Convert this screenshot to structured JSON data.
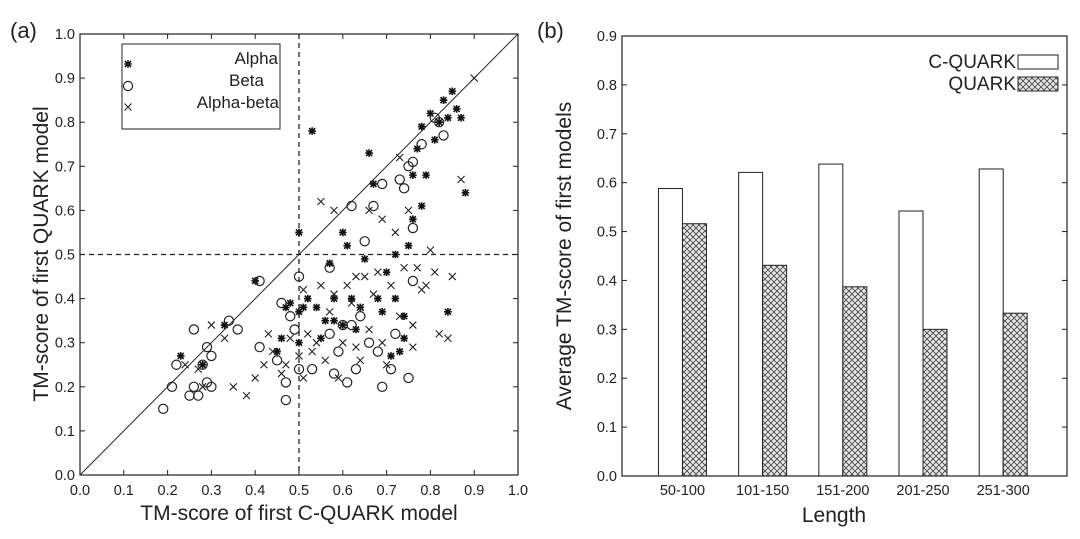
{
  "chart_data": [
    {
      "panel": "(a)",
      "type": "scatter",
      "xlabel": "TM-score of first C-QUARK model",
      "ylabel": "TM-score of first QUARK model",
      "xlim": [
        0.0,
        1.0
      ],
      "ylim": [
        0.0,
        1.0
      ],
      "xticks": [
        "0.0",
        "0.1",
        "0.2",
        "0.3",
        "0.4",
        "0.5",
        "0.6",
        "0.7",
        "0.8",
        "0.9",
        "1.0"
      ],
      "yticks": [
        "0.0",
        "0.1",
        "0.2",
        "0.3",
        "0.4",
        "0.5",
        "0.6",
        "0.7",
        "0.8",
        "0.9",
        "1.0"
      ],
      "reference_lines": {
        "diagonal": "y = x",
        "vertical_dashed_x": 0.5,
        "horizontal_dashed_y": 0.5
      },
      "legend": [
        "Alpha",
        "Beta",
        "Alpha-beta"
      ],
      "series": [
        {
          "name": "Alpha",
          "marker": "asterisk",
          "points": [
            [
              0.23,
              0.27
            ],
            [
              0.28,
              0.25
            ],
            [
              0.33,
              0.34
            ],
            [
              0.4,
              0.44
            ],
            [
              0.45,
              0.28
            ],
            [
              0.46,
              0.31
            ],
            [
              0.47,
              0.38
            ],
            [
              0.48,
              0.39
            ],
            [
              0.5,
              0.37
            ],
            [
              0.5,
              0.3
            ],
            [
              0.51,
              0.38
            ],
            [
              0.52,
              0.4
            ],
            [
              0.53,
              0.78
            ],
            [
              0.54,
              0.38
            ],
            [
              0.56,
              0.35
            ],
            [
              0.58,
              0.4
            ],
            [
              0.58,
              0.35
            ],
            [
              0.6,
              0.34
            ],
            [
              0.61,
              0.52
            ],
            [
              0.62,
              0.4
            ],
            [
              0.63,
              0.33
            ],
            [
              0.64,
              0.38
            ],
            [
              0.65,
              0.49
            ],
            [
              0.66,
              0.73
            ],
            [
              0.67,
              0.66
            ],
            [
              0.68,
              0.4
            ],
            [
              0.69,
              0.37
            ],
            [
              0.7,
              0.46
            ],
            [
              0.72,
              0.5
            ],
            [
              0.72,
              0.4
            ],
            [
              0.73,
              0.28
            ],
            [
              0.74,
              0.31
            ],
            [
              0.74,
              0.36
            ],
            [
              0.75,
              0.52
            ],
            [
              0.76,
              0.58
            ],
            [
              0.76,
              0.68
            ],
            [
              0.77,
              0.74
            ],
            [
              0.78,
              0.79
            ],
            [
              0.79,
              0.68
            ],
            [
              0.8,
              0.82
            ],
            [
              0.81,
              0.76
            ],
            [
              0.82,
              0.8
            ],
            [
              0.83,
              0.85
            ],
            [
              0.84,
              0.81
            ],
            [
              0.85,
              0.87
            ],
            [
              0.86,
              0.83
            ],
            [
              0.87,
              0.81
            ],
            [
              0.88,
              0.64
            ],
            [
              0.84,
              0.37
            ],
            [
              0.6,
              0.55
            ],
            [
              0.55,
              0.31
            ],
            [
              0.5,
              0.55
            ],
            [
              0.57,
              0.48
            ],
            [
              0.71,
              0.27
            ],
            [
              0.78,
              0.61
            ]
          ]
        },
        {
          "name": "Beta",
          "marker": "circle",
          "points": [
            [
              0.19,
              0.15
            ],
            [
              0.21,
              0.2
            ],
            [
              0.22,
              0.25
            ],
            [
              0.25,
              0.18
            ],
            [
              0.26,
              0.2
            ],
            [
              0.26,
              0.33
            ],
            [
              0.27,
              0.18
            ],
            [
              0.28,
              0.25
            ],
            [
              0.29,
              0.21
            ],
            [
              0.3,
              0.2
            ],
            [
              0.3,
              0.27
            ],
            [
              0.34,
              0.35
            ],
            [
              0.36,
              0.33
            ],
            [
              0.41,
              0.44
            ],
            [
              0.41,
              0.29
            ],
            [
              0.45,
              0.26
            ],
            [
              0.47,
              0.21
            ],
            [
              0.47,
              0.17
            ],
            [
              0.48,
              0.36
            ],
            [
              0.49,
              0.33
            ],
            [
              0.5,
              0.45
            ],
            [
              0.5,
              0.24
            ],
            [
              0.53,
              0.24
            ],
            [
              0.57,
              0.32
            ],
            [
              0.57,
              0.47
            ],
            [
              0.58,
              0.23
            ],
            [
              0.59,
              0.28
            ],
            [
              0.6,
              0.34
            ],
            [
              0.61,
              0.21
            ],
            [
              0.62,
              0.34
            ],
            [
              0.62,
              0.61
            ],
            [
              0.63,
              0.24
            ],
            [
              0.65,
              0.53
            ],
            [
              0.66,
              0.3
            ],
            [
              0.67,
              0.61
            ],
            [
              0.68,
              0.28
            ],
            [
              0.69,
              0.2
            ],
            [
              0.69,
              0.66
            ],
            [
              0.71,
              0.24
            ],
            [
              0.73,
              0.67
            ],
            [
              0.74,
              0.65
            ],
            [
              0.75,
              0.22
            ],
            [
              0.75,
              0.7
            ],
            [
              0.76,
              0.44
            ],
            [
              0.76,
              0.56
            ],
            [
              0.76,
              0.71
            ],
            [
              0.78,
              0.75
            ],
            [
              0.81,
              0.81
            ],
            [
              0.82,
              0.8
            ],
            [
              0.83,
              0.77
            ],
            [
              0.46,
              0.39
            ],
            [
              0.64,
              0.36
            ],
            [
              0.29,
              0.29
            ],
            [
              0.72,
              0.32
            ]
          ]
        },
        {
          "name": "Alpha-beta",
          "marker": "x",
          "points": [
            [
              0.24,
              0.25
            ],
            [
              0.27,
              0.24
            ],
            [
              0.28,
              0.2
            ],
            [
              0.3,
              0.34
            ],
            [
              0.33,
              0.31
            ],
            [
              0.35,
              0.2
            ],
            [
              0.38,
              0.18
            ],
            [
              0.4,
              0.22
            ],
            [
              0.42,
              0.25
            ],
            [
              0.43,
              0.32
            ],
            [
              0.44,
              0.28
            ],
            [
              0.46,
              0.23
            ],
            [
              0.47,
              0.25
            ],
            [
              0.48,
              0.31
            ],
            [
              0.5,
              0.27
            ],
            [
              0.51,
              0.22
            ],
            [
              0.52,
              0.32
            ],
            [
              0.53,
              0.28
            ],
            [
              0.54,
              0.3
            ],
            [
              0.55,
              0.43
            ],
            [
              0.56,
              0.26
            ],
            [
              0.57,
              0.37
            ],
            [
              0.58,
              0.41
            ],
            [
              0.59,
              0.22
            ],
            [
              0.6,
              0.3
            ],
            [
              0.61,
              0.43
            ],
            [
              0.62,
              0.39
            ],
            [
              0.63,
              0.29
            ],
            [
              0.64,
              0.26
            ],
            [
              0.65,
              0.45
            ],
            [
              0.66,
              0.33
            ],
            [
              0.67,
              0.41
            ],
            [
              0.68,
              0.46
            ],
            [
              0.69,
              0.3
            ],
            [
              0.7,
              0.25
            ],
            [
              0.71,
              0.43
            ],
            [
              0.72,
              0.55
            ],
            [
              0.73,
              0.36
            ],
            [
              0.74,
              0.47
            ],
            [
              0.75,
              0.6
            ],
            [
              0.76,
              0.34
            ],
            [
              0.77,
              0.47
            ],
            [
              0.78,
              0.42
            ],
            [
              0.79,
              0.43
            ],
            [
              0.8,
              0.51
            ],
            [
              0.81,
              0.46
            ],
            [
              0.82,
              0.32
            ],
            [
              0.84,
              0.31
            ],
            [
              0.85,
              0.45
            ],
            [
              0.87,
              0.67
            ],
            [
              0.9,
              0.9
            ],
            [
              0.66,
              0.6
            ],
            [
              0.63,
              0.45
            ],
            [
              0.55,
              0.62
            ],
            [
              0.69,
              0.58
            ],
            [
              0.58,
              0.6
            ],
            [
              0.73,
              0.72
            ],
            [
              0.51,
              0.42
            ],
            [
              0.64,
              0.38
            ],
            [
              0.76,
              0.29
            ]
          ]
        }
      ]
    },
    {
      "panel": "(b)",
      "type": "bar",
      "xlabel": "Length",
      "ylabel": "Average TM-score of first models",
      "categories": [
        "50-100",
        "101-150",
        "151-200",
        "201-250",
        "251-300"
      ],
      "ylim": [
        0.0,
        0.9
      ],
      "yticks": [
        "0.0",
        "0.1",
        "0.2",
        "0.3",
        "0.4",
        "0.5",
        "0.6",
        "0.7",
        "0.8",
        "0.9"
      ],
      "legend": [
        "C-QUARK",
        "QUARK"
      ],
      "series": [
        {
          "name": "C-QUARK",
          "fill": "white",
          "values": [
            0.588,
            0.621,
            0.638,
            0.542,
            0.628
          ]
        },
        {
          "name": "QUARK",
          "fill": "crosshatch",
          "values": [
            0.516,
            0.431,
            0.387,
            0.3,
            0.333
          ]
        }
      ]
    }
  ]
}
